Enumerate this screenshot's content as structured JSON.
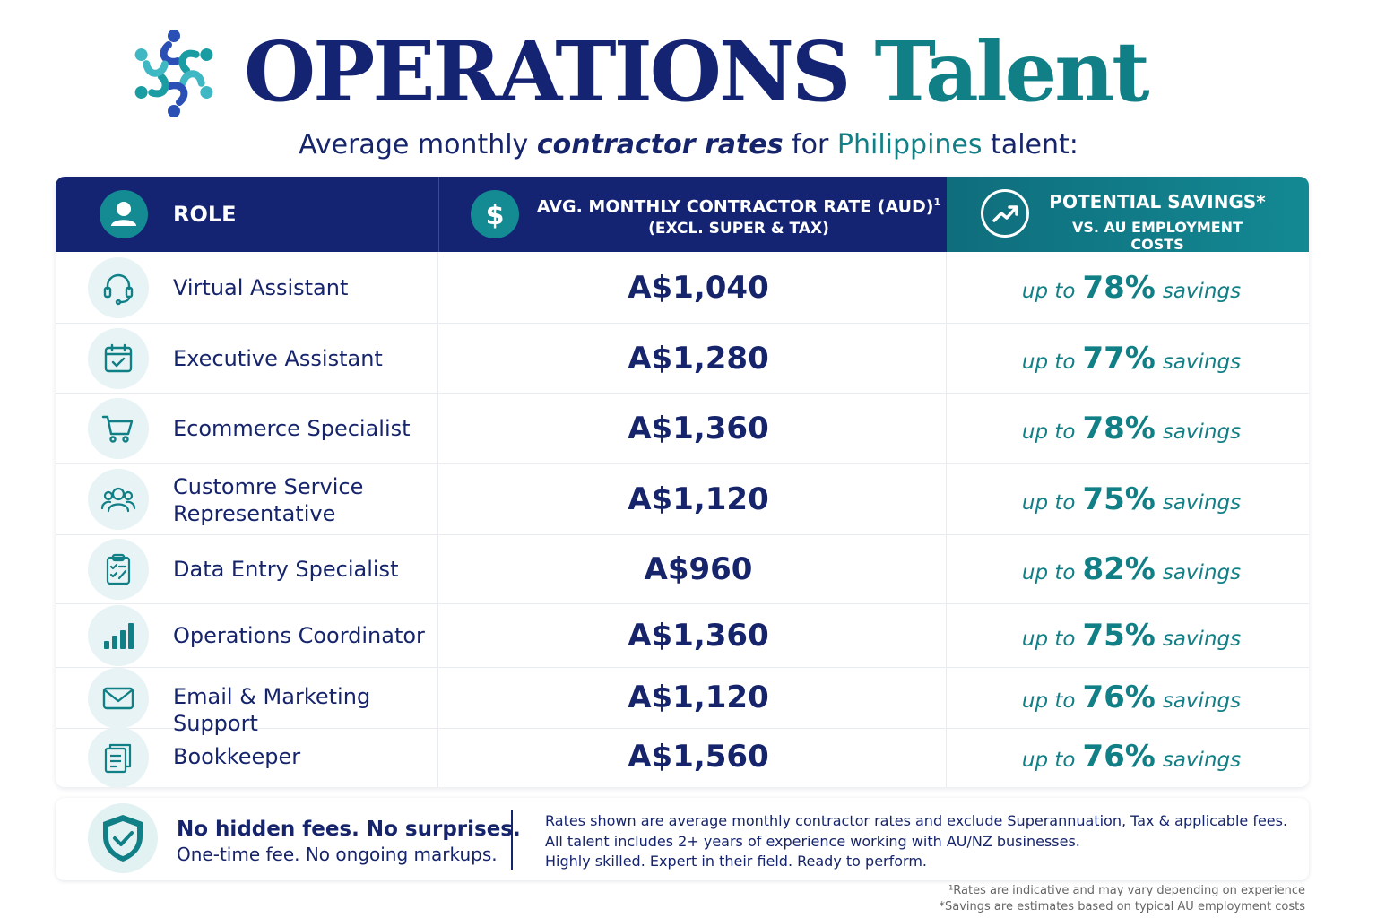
{
  "header": {
    "title_part1": "OPERATIONS",
    "title_part2": "Talent",
    "subtitle_a": "Average monthly ",
    "subtitle_b": "contractor rates",
    "subtitle_c": " for ",
    "subtitle_d": "Philippines",
    "subtitle_e": " talent:"
  },
  "table": {
    "col_role": "ROLE",
    "col_rate": "AVG. MONTHLY CONTRACTOR RATE (AUD)",
    "col_rate_mark": "1",
    "col_rate_sub": "(EXCL. SUPER & TAX)",
    "col_savings": "POTENTIAL SAVINGS*",
    "col_savings_sub": "VS. AU EMPLOYMENT COSTS",
    "up_to": "up to",
    "savings_word": "savings",
    "rows": [
      {
        "role": "Virtual Assistant",
        "rate": "A$1,040",
        "savings": "78%",
        "icon": "headset-icon"
      },
      {
        "role": "Executive Assistant",
        "rate": "A$1,280",
        "savings": "77%",
        "icon": "calendar-check-icon"
      },
      {
        "role": "Ecommerce Specialist",
        "rate": "A$1,360",
        "savings": "78%",
        "icon": "cart-icon"
      },
      {
        "role": "Customre Service Representative",
        "rate": "A$1,120",
        "savings": "75%",
        "icon": "people-icon"
      },
      {
        "role": "Data Entry Specialist",
        "rate": "A$960",
        "savings": "82%",
        "icon": "clipboard-icon"
      },
      {
        "role": "Operations Coordinator",
        "rate": "A$1,360",
        "savings": "75%",
        "icon": "bar-chart-icon"
      },
      {
        "role": "Email & Marketing Support",
        "rate": "A$1,120",
        "savings": "76%",
        "icon": "envelope-icon"
      },
      {
        "role": "Bookkeeper",
        "rate": "A$1,560",
        "savings": "76%",
        "icon": "documents-icon"
      }
    ]
  },
  "footer": {
    "no_fees": "No hidden fees. No surprises.",
    "one_time": "One-time fee. No ongoing markups.",
    "note1": "Rates shown are average monthly contractor rates and exclude Superannuation, Tax & applicable fees.",
    "note2": "All talent includes 2+ years of experience working with AU/NZ businesses.",
    "note3": "Highly skilled. Expert in their field. Ready to perform.",
    "fine1": "¹Rates are indicative and may vary depending on experience",
    "fine2": "*Savings are estimates based on typical AU employment costs"
  },
  "colors": {
    "navy": "#142473",
    "teal": "#117f86",
    "icon_bg": "#e7f3f4"
  }
}
